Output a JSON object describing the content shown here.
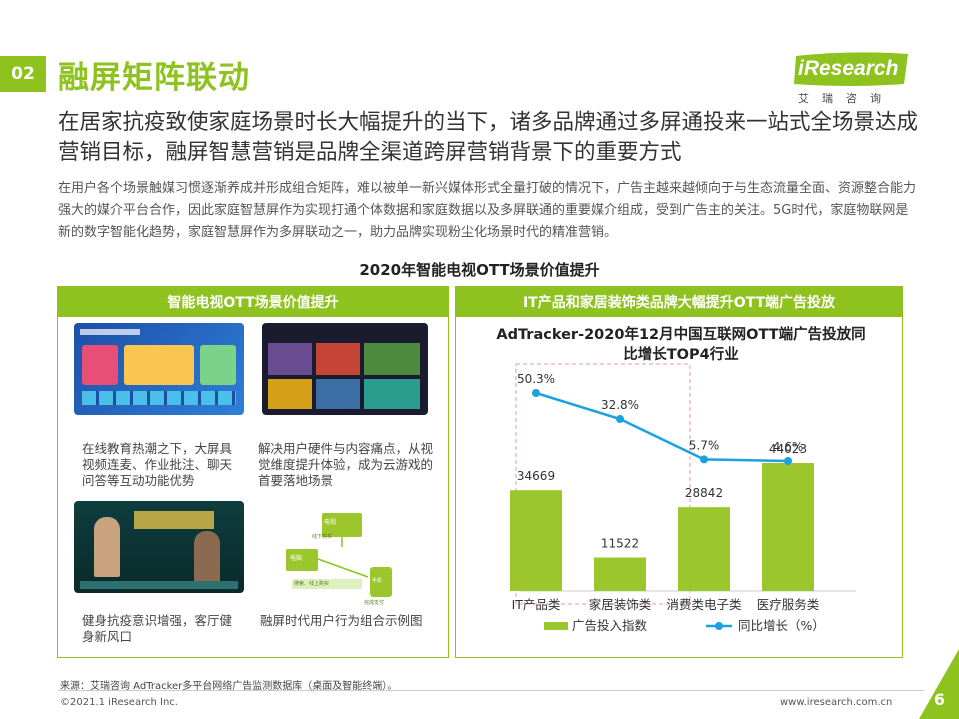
{
  "header": {
    "section_number": "02",
    "title": "融屏矩阵联动",
    "logo_text": "iResearch",
    "logo_sub": "艾瑞咨询"
  },
  "headline": "在居家抗疫致使家庭场景时长大幅提升的当下，诸多品牌通过多屏通投来一站式全场景达成营销目标，融屏智慧营销是品牌全渠道跨屏营销背景下的重要方式",
  "body_text": "在用户各个场景触媒习惯逐渐养成并形成组合矩阵，难以被单一新兴媒体形式全量打破的情况下，广告主越来越倾向于与生态流量全面、资源整合能力强大的媒介平台合作，因此家庭智慧屏作为实现打通个体数据和家庭数据以及多屏联通的重要媒介组成，受到广告主的关注。5G时代，家庭物联网是新的数字智能化趋势，家庭智慧屏作为多屏联动之一，助力品牌实现粉尘化场景时代的精准营销。",
  "section_title": "2020年智能电视OTT场景价值提升",
  "left_panel": {
    "header": "智能电视OTT场景价值提升",
    "captions": [
      "在线教育热潮之下，大屏具视频连麦、作业批注、聊天问答等互动功能优势",
      "解决用户硬件与内容痛点，从视觉维度提升体验，成为云游戏的首要落地场景",
      "健身抗疫意识增强，客厅健身新风口",
      "融屏时代用户行为组合示例图"
    ],
    "diagram_labels": [
      "电视",
      "电脑",
      "搜索、线上购买",
      "手机",
      "完成支付",
      "线下购买"
    ]
  },
  "right_panel": {
    "header": "IT产品和家居装饰类品牌大幅提升OTT端广告投放"
  },
  "chart_data": {
    "type": "bar",
    "title": "AdTracker-2020年12月中国互联网OTT端广告投放同比增长TOP4行业",
    "categories": [
      "IT产品类",
      "家居装饰类",
      "消费类电子类",
      "医疗服务类"
    ],
    "series": [
      {
        "name": "广告投入指数",
        "type": "bar",
        "values": [
          34669,
          11522,
          28842,
          44023
        ],
        "color": "#9bc72d"
      },
      {
        "name": "同比增长（%）",
        "type": "line",
        "values": [
          50.3,
          32.8,
          5.7,
          4.6
        ],
        "labels": [
          "50.3%",
          "32.8%",
          "5.7%",
          "4.6%"
        ],
        "color": "#1ba1e2"
      }
    ],
    "highlight_categories": [
      "IT产品类",
      "家居装饰类"
    ]
  },
  "footer": {
    "source": "来源：艾瑞咨询 AdTracker多平台网络广告监测数据库（桌面及智能终端）。",
    "copyright": "©2021.1 iResearch Inc.",
    "website": "www.iresearch.com.cn",
    "page": "6"
  },
  "colors": {
    "accent": "#8dc21f",
    "line": "#1ba1e2",
    "bar": "#9bc72d"
  }
}
